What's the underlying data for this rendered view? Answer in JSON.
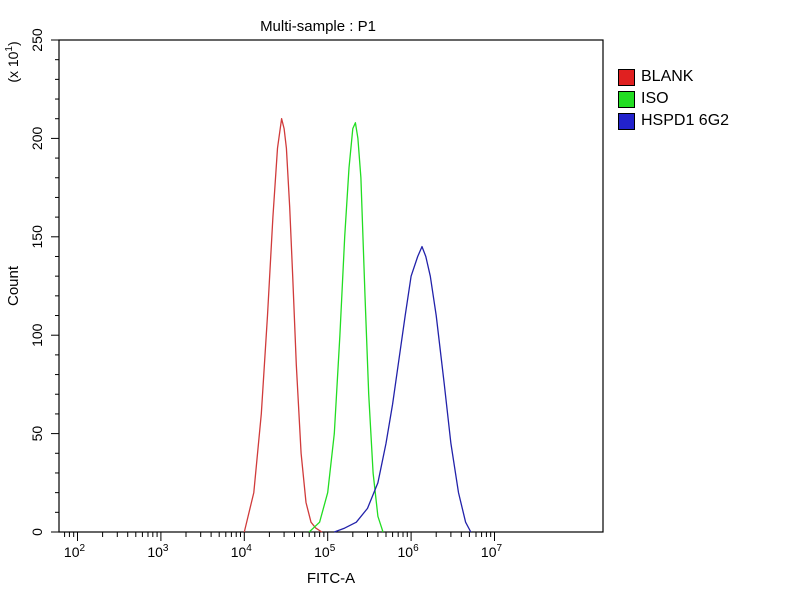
{
  "chart_data": {
    "type": "line",
    "title": "Multi-sample : P1",
    "xlabel": "FITC-A",
    "ylabel": "Count",
    "y_multiplier_label": "(x 10",
    "y_multiplier_exp": "1",
    "x_scale": "log",
    "xlim": [
      60,
      200000000
    ],
    "ylim": [
      0,
      250
    ],
    "x_ticks": [
      {
        "value": 100,
        "base": "10",
        "exp": "2"
      },
      {
        "value": 1000,
        "base": "10",
        "exp": "3"
      },
      {
        "value": 10000,
        "base": "10",
        "exp": "4"
      },
      {
        "value": 100000,
        "base": "10",
        "exp": "5"
      },
      {
        "value": 1000000,
        "base": "10",
        "exp": "6"
      },
      {
        "value": 10000000,
        "base": "10",
        "exp": "7"
      }
    ],
    "y_ticks": [
      "0",
      "50",
      "100",
      "150",
      "200",
      "250"
    ],
    "legend_position": "right",
    "grid": false,
    "series": [
      {
        "name": "BLANK",
        "color": "#d03b3b",
        "x": [
          10000,
          13000,
          16000,
          19000,
          22000,
          25000,
          28000,
          30000,
          32000,
          35000,
          38000,
          42000,
          48000,
          55000,
          63000,
          72000,
          85000
        ],
        "y": [
          0,
          20,
          60,
          110,
          160,
          195,
          210,
          205,
          195,
          165,
          130,
          85,
          40,
          15,
          5,
          2,
          0
        ]
      },
      {
        "name": "ISO",
        "color": "#22dd22",
        "x": [
          60000,
          80000,
          100000,
          120000,
          140000,
          160000,
          180000,
          200000,
          215000,
          230000,
          250000,
          280000,
          310000,
          350000,
          400000,
          460000
        ],
        "y": [
          0,
          5,
          20,
          50,
          100,
          150,
          185,
          205,
          208,
          200,
          180,
          120,
          70,
          30,
          8,
          0
        ]
      },
      {
        "name": "HSPD1 6G2",
        "color": "#2222aa",
        "x": [
          120000,
          160000,
          220000,
          300000,
          400000,
          500000,
          600000,
          700000,
          850000,
          1000000,
          1200000,
          1350000,
          1500000,
          1700000,
          2000000,
          2500000,
          3000000,
          3700000,
          4500000,
          5200000
        ],
        "y": [
          0,
          2,
          5,
          12,
          25,
          45,
          65,
          85,
          110,
          130,
          140,
          145,
          140,
          130,
          110,
          75,
          45,
          20,
          5,
          0
        ]
      }
    ]
  }
}
